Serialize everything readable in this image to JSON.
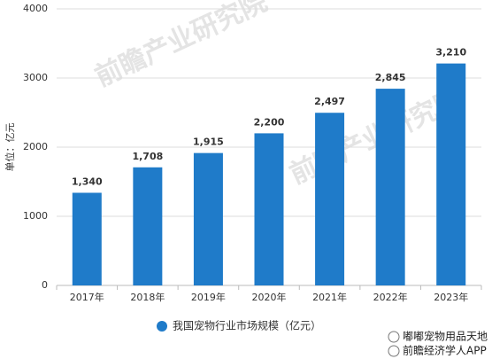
{
  "chart_data": {
    "type": "bar",
    "y_label": "单位：亿元",
    "categories": [
      "2017年",
      "2018年",
      "2019年",
      "2020年",
      "2021年",
      "2022年",
      "2023年"
    ],
    "series": [
      {
        "name": "我国宠物行业市场规模（亿元）",
        "color": "#1f7bc9",
        "values": [
          1340,
          1708,
          1915,
          2200,
          2497,
          2845,
          3210
        ],
        "value_labels": [
          "1,340",
          "1,708",
          "1,915",
          "2,200",
          "2,497",
          "2,845",
          "3,210"
        ]
      }
    ],
    "ylim": [
      0,
      4000
    ],
    "yticks": [
      0,
      1000,
      2000,
      3000,
      4000
    ],
    "grid": true,
    "legend": "bottom",
    "watermark": "前瞻产业研究院",
    "source_marks": [
      "嘟嘟宠物用品天地",
      "前瞻经济学人APP"
    ]
  }
}
